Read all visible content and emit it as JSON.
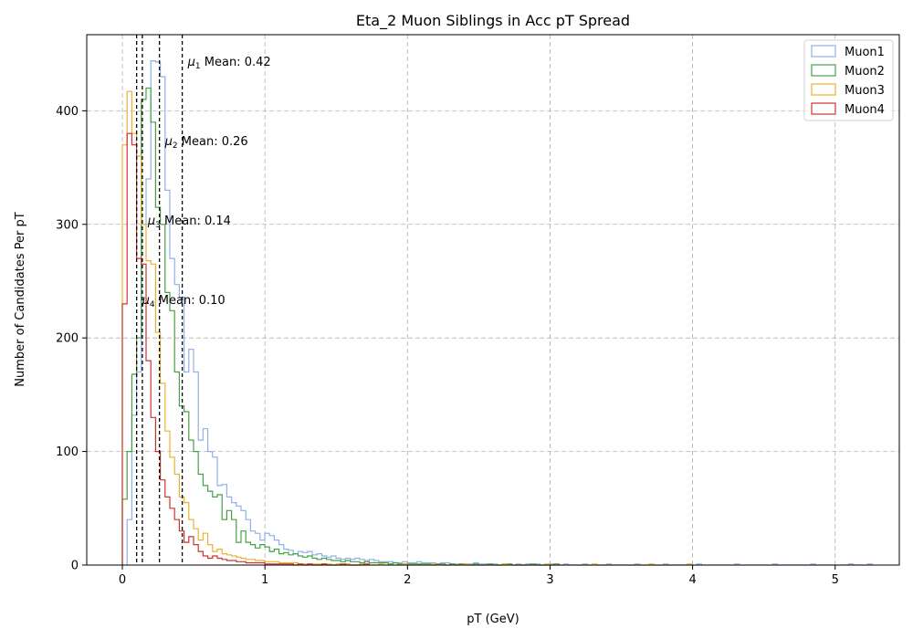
{
  "chart_data": {
    "type": "histogram",
    "title": "Eta_2 Muon Siblings in Acc pT Spread",
    "xlabel": "pT (GeV)",
    "ylabel": "Number of Candidates Per pT",
    "xlim": [
      -0.25,
      5.45
    ],
    "ylim": [
      0,
      467
    ],
    "x_ticks": [
      0,
      1,
      2,
      3,
      4,
      5
    ],
    "y_ticks": [
      0,
      100,
      200,
      300,
      400
    ],
    "grid": true,
    "legend_position": "top-right",
    "bin_width": 0.0333,
    "series": [
      {
        "name": "Muon1",
        "color": "#8fb0ea",
        "mean_value": 0.42,
        "mean_label_prefix": "μ",
        "mean_label_sub": "1",
        "mean_label_suffix": " Mean: 0.42",
        "mean_label_y": 443,
        "start": 0.033,
        "values": [
          40,
          132,
          170,
          300,
          340,
          444,
          443,
          430,
          330,
          270,
          247,
          236,
          170,
          190,
          170,
          110,
          120,
          100,
          95,
          70,
          71,
          60,
          55,
          52,
          48,
          40,
          30,
          28,
          22,
          28,
          26,
          22,
          18,
          14,
          13,
          10,
          12,
          11,
          12,
          9,
          10,
          8,
          7,
          8,
          6,
          5,
          6,
          5,
          6,
          5,
          4,
          5,
          4,
          3,
          3,
          3,
          2,
          2,
          3,
          2,
          2,
          3,
          2,
          2,
          2,
          1,
          2,
          2,
          1,
          1,
          1,
          1,
          1,
          2,
          1,
          1,
          1,
          1,
          0,
          1,
          1,
          0,
          1,
          0,
          1,
          0,
          1,
          0,
          0,
          1,
          0,
          0,
          1,
          0,
          0,
          0,
          1,
          0,
          0,
          0,
          0,
          1,
          0,
          0,
          0,
          0,
          0,
          1,
          0,
          0,
          0,
          0,
          0,
          1,
          0,
          0,
          0,
          0,
          0,
          0,
          1,
          0,
          0,
          0,
          0,
          0,
          0,
          0,
          1,
          0,
          0,
          0,
          0,
          0,
          0,
          0,
          1,
          0,
          0,
          0,
          0,
          0,
          0,
          0,
          1,
          0,
          0,
          0,
          0,
          0,
          0,
          0,
          1,
          0,
          0,
          0,
          1
        ]
      },
      {
        "name": "Muon2",
        "color": "#46a046",
        "mean_value": 0.26,
        "mean_label_prefix": "μ",
        "mean_label_sub": "2",
        "mean_label_suffix": " Mean: 0.26",
        "mean_label_y": 373,
        "start": 0.0,
        "values": [
          58,
          100,
          168,
          200,
          410,
          420,
          390,
          315,
          300,
          240,
          224,
          170,
          140,
          135,
          110,
          100,
          80,
          70,
          65,
          60,
          62,
          40,
          48,
          40,
          20,
          30,
          20,
          18,
          15,
          18,
          16,
          12,
          14,
          10,
          11,
          9,
          10,
          8,
          7,
          8,
          6,
          5,
          6,
          5,
          4,
          4,
          3,
          4,
          3,
          3,
          2,
          3,
          2,
          2,
          2,
          2,
          1,
          2,
          1,
          1,
          1,
          1,
          1,
          1,
          1,
          0,
          1,
          1,
          0,
          1,
          0,
          1,
          0,
          0,
          1,
          0,
          0,
          1,
          0,
          0,
          0,
          1,
          0,
          0,
          0,
          0,
          1,
          0,
          0,
          0,
          0,
          1
        ]
      },
      {
        "name": "Muon3",
        "color": "#e8b330",
        "mean_value": 0.14,
        "mean_label_prefix": "μ",
        "mean_label_sub": "3",
        "mean_label_suffix": " Mean: 0.14",
        "mean_label_y": 303,
        "start": 0.0,
        "values": [
          370,
          417,
          380,
          360,
          300,
          268,
          265,
          205,
          160,
          118,
          95,
          80,
          60,
          55,
          40,
          32,
          22,
          28,
          18,
          12,
          14,
          10,
          9,
          8,
          7,
          6,
          5,
          5,
          4,
          4,
          3,
          3,
          3,
          2,
          2,
          2,
          2,
          1,
          1,
          1,
          1,
          1,
          1,
          1,
          0,
          1,
          0,
          1,
          0,
          0,
          1,
          0,
          0,
          0,
          1,
          0,
          0,
          0,
          0,
          1,
          0,
          0,
          0,
          0,
          0,
          1,
          0,
          0,
          0,
          0,
          0,
          0,
          1,
          0,
          0,
          0,
          0,
          0,
          0,
          0,
          1,
          0,
          0,
          0,
          0,
          0,
          0,
          0,
          0,
          1,
          0,
          0,
          0,
          0,
          0,
          0,
          0,
          0,
          0,
          1,
          0,
          0,
          0,
          0,
          0,
          0,
          0,
          0,
          0,
          0,
          0,
          1,
          0,
          0,
          0,
          0,
          0,
          0,
          0,
          1
        ]
      },
      {
        "name": "Muon4",
        "color": "#cc3333",
        "mean_value": 0.1,
        "mean_label_prefix": "μ",
        "mean_label_sub": "4",
        "mean_label_suffix": " Mean: 0.10",
        "mean_label_y": 233,
        "start": 0.0,
        "values": [
          230,
          380,
          370,
          270,
          265,
          180,
          130,
          100,
          75,
          60,
          50,
          40,
          30,
          20,
          25,
          18,
          12,
          8,
          6,
          8,
          6,
          5,
          4,
          4,
          3,
          3,
          2,
          2,
          2,
          2,
          1,
          1,
          1,
          1,
          1,
          1,
          0,
          1,
          0,
          1,
          0,
          0,
          1,
          0,
          0,
          0,
          1,
          0,
          0,
          0,
          0,
          1
        ]
      }
    ]
  }
}
